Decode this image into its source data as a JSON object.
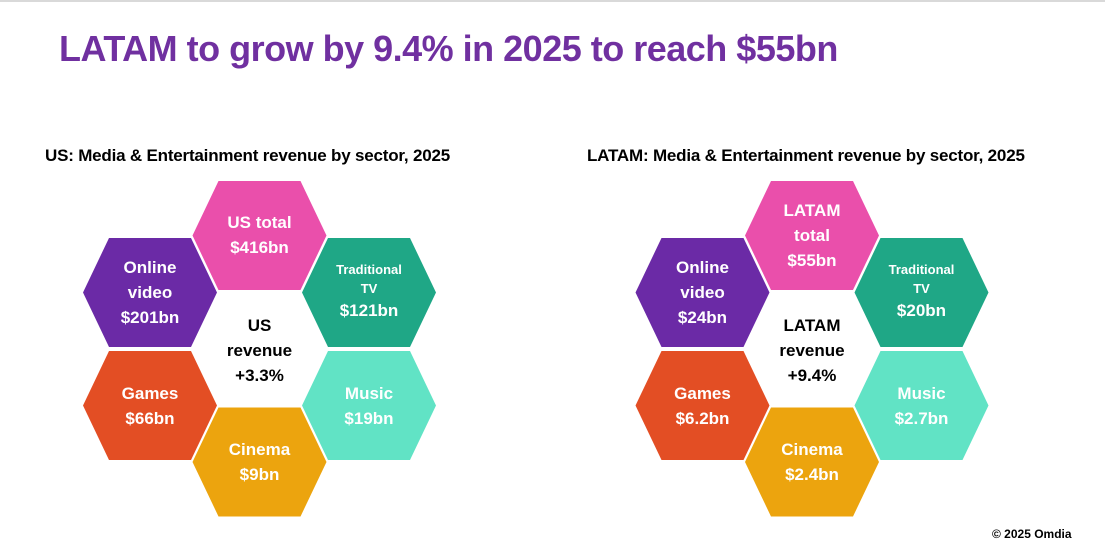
{
  "title": "LATAM to grow by 9.4% in 2025 to reach $55bn",
  "colors": {
    "title": "#7030a0",
    "total": "#ea4fab",
    "online_video": "#6b2aa6",
    "traditional_tv": "#1fa786",
    "games": "#e34e24",
    "cinema": "#eca40e",
    "music": "#61e3c5"
  },
  "panels": [
    {
      "title": "US: Media & Entertainment revenue by sector, 2025",
      "center": {
        "line1": "US",
        "line2": "revenue",
        "growth": "+3.3%"
      },
      "sectors": {
        "total": {
          "label": "US total",
          "value": "$416bn"
        },
        "online_video": {
          "label1": "Online",
          "label2": "video",
          "value": "$201bn"
        },
        "traditional_tv": {
          "label1": "Traditional",
          "label2": "TV",
          "value": "$121bn"
        },
        "games": {
          "label": "Games",
          "value": "$66bn"
        },
        "cinema": {
          "label": "Cinema",
          "value": "$9bn"
        },
        "music": {
          "label": "Music",
          "value": "$19bn"
        }
      }
    },
    {
      "title": "LATAM: Media & Entertainment revenue by sector, 2025",
      "center": {
        "line1": "LATAM",
        "line2": "revenue",
        "growth": "+9.4%"
      },
      "sectors": {
        "total": {
          "label1": "LATAM",
          "label2": "total",
          "value": "$55bn"
        },
        "online_video": {
          "label1": "Online",
          "label2": "video",
          "value": "$24bn"
        },
        "traditional_tv": {
          "label1": "Traditional",
          "label2": "TV",
          "value": "$20bn"
        },
        "games": {
          "label": "Games",
          "value": "$6.2bn"
        },
        "cinema": {
          "label": "Cinema",
          "value": "$2.4bn"
        },
        "music": {
          "label": "Music",
          "value": "$2.7bn"
        }
      }
    }
  ],
  "footer": "© 2025 Omdia"
}
